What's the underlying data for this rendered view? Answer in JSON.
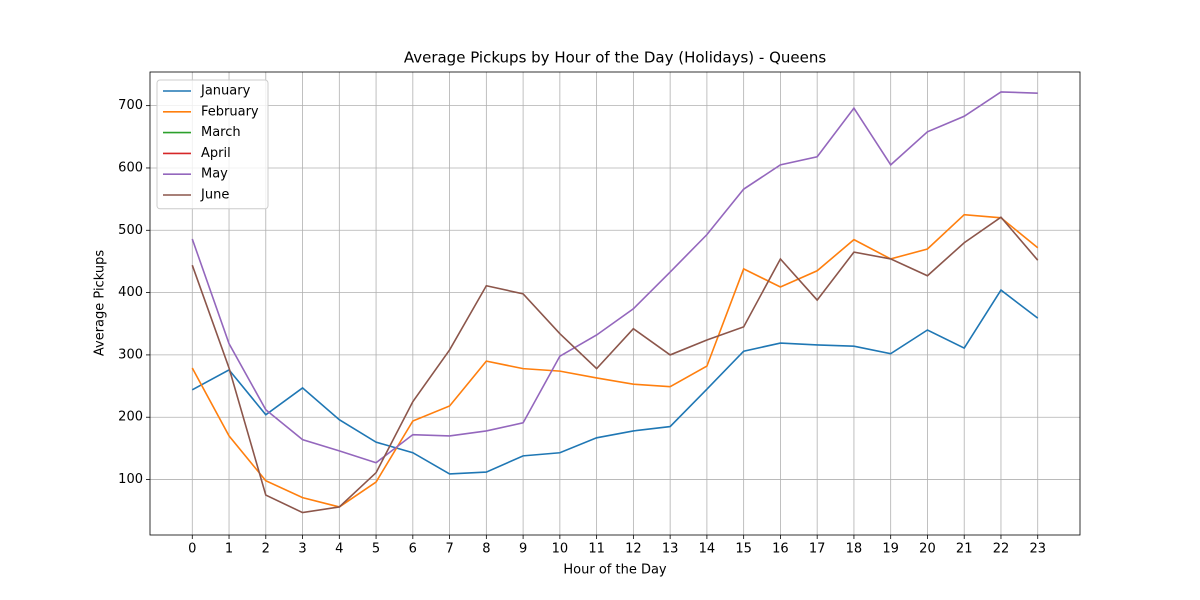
{
  "chart_data": {
    "type": "line",
    "title": "Average Pickups by Hour of the Day (Holidays) - Queens",
    "x_label": "Hour of the Day",
    "y_label": "Average Pickups",
    "x": [
      0,
      1,
      2,
      3,
      4,
      5,
      6,
      7,
      8,
      9,
      10,
      11,
      12,
      13,
      14,
      15,
      16,
      17,
      18,
      19,
      20,
      21,
      22,
      23
    ],
    "series": [
      {
        "name": "January",
        "color": "#1f77b4",
        "values": [
          244,
          276,
          204,
          247,
          196,
          160,
          143,
          109,
          112,
          138,
          143,
          167,
          178,
          185,
          245,
          306,
          319,
          316,
          314,
          302,
          340,
          311,
          404,
          359
        ]
      },
      {
        "name": "February",
        "color": "#ff7f0e",
        "values": [
          279,
          170,
          98,
          71,
          56,
          96,
          194,
          218,
          290,
          278,
          274,
          263,
          253,
          249,
          282,
          438,
          409,
          435,
          485,
          454,
          470,
          525,
          520,
          472
        ]
      },
      {
        "name": "March",
        "color": "#2ca02c",
        "values": [
          null,
          null,
          null,
          null,
          null,
          null,
          null,
          null,
          null,
          null,
          null,
          null,
          null,
          null,
          null,
          null,
          null,
          null,
          null,
          null,
          null,
          null,
          null,
          null
        ]
      },
      {
        "name": "April",
        "color": "#d62728",
        "values": [
          null,
          null,
          null,
          null,
          null,
          null,
          null,
          null,
          null,
          null,
          null,
          null,
          null,
          null,
          null,
          null,
          null,
          null,
          null,
          null,
          null,
          null,
          null,
          null
        ]
      },
      {
        "name": "May",
        "color": "#9467bd",
        "values": [
          486,
          318,
          212,
          164,
          146,
          127,
          172,
          170,
          178,
          191,
          298,
          332,
          374,
          433,
          493,
          566,
          605,
          618,
          696,
          605,
          658,
          683,
          722,
          720
        ]
      },
      {
        "name": "June",
        "color": "#8c564b",
        "values": [
          444,
          279,
          75,
          47,
          56,
          111,
          225,
          308,
          411,
          398,
          334,
          278,
          342,
          300,
          324,
          345,
          454,
          388,
          465,
          454,
          427,
          480,
          521,
          452
        ]
      }
    ],
    "xlim": [
      -1.15,
      24.15
    ],
    "xticks": [
      0,
      1,
      2,
      3,
      4,
      5,
      6,
      7,
      8,
      9,
      10,
      11,
      12,
      13,
      14,
      15,
      16,
      17,
      18,
      19,
      20,
      21,
      22,
      23
    ],
    "ylim": [
      11,
      754
    ],
    "yticks": [
      100,
      200,
      300,
      400,
      500,
      600,
      700
    ],
    "grid": true,
    "legend": "upper left"
  }
}
